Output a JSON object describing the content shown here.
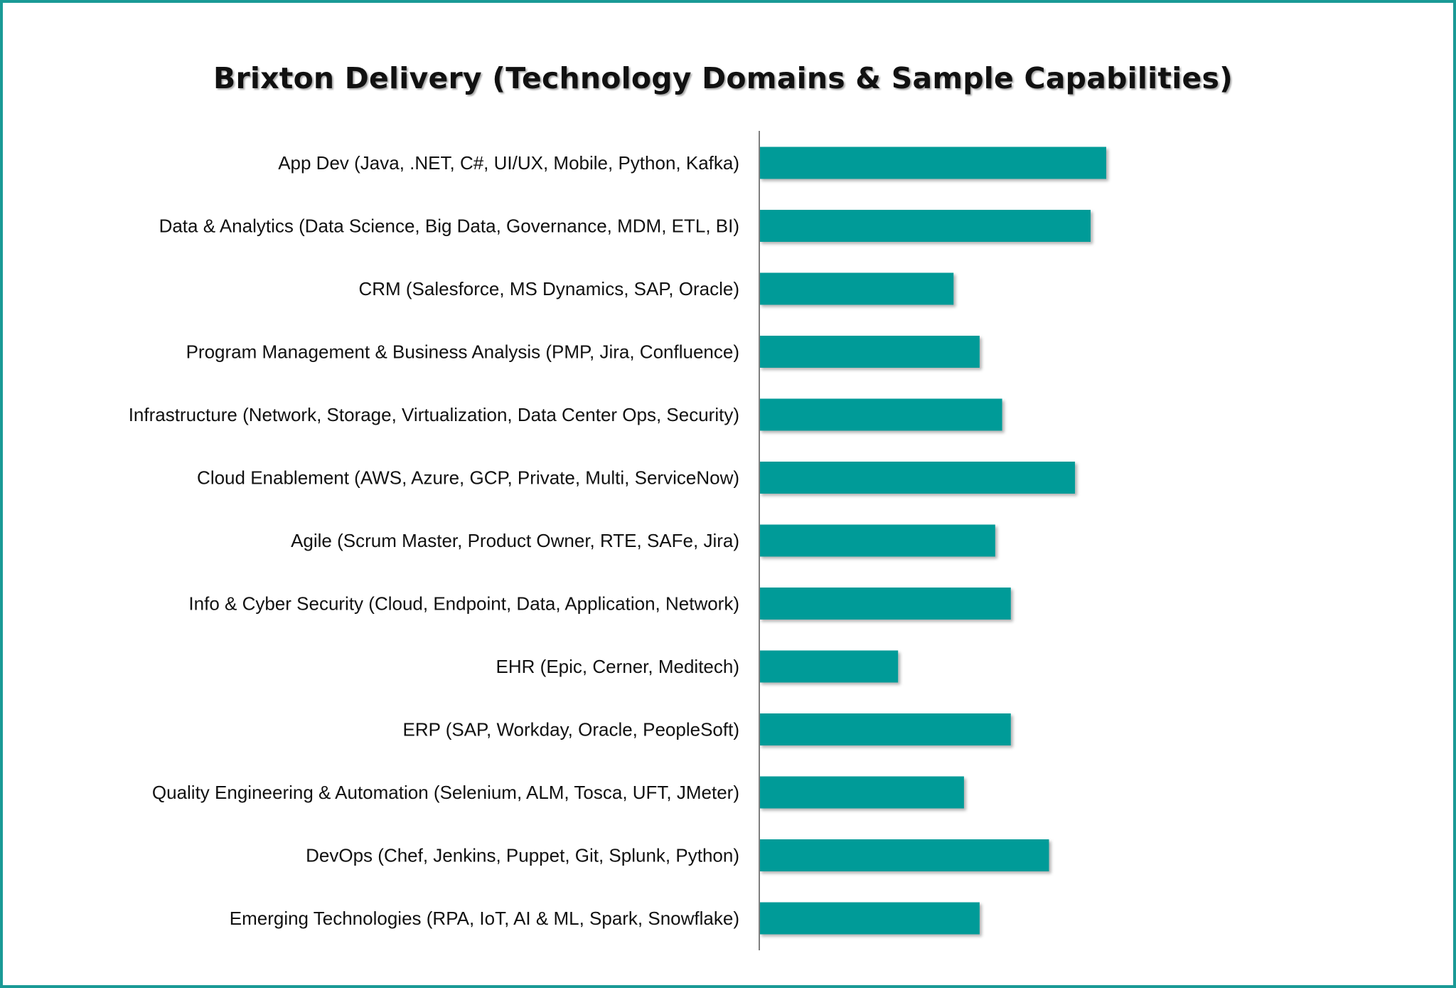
{
  "chart_data": {
    "type": "bar",
    "orientation": "horizontal",
    "title": "Brixton Delivery (Technology Domains & Sample Capabilities)",
    "xlabel": "",
    "ylabel": "",
    "categories": [
      "App Dev (Java, .NET, C#, UI/UX, Mobile, Python, Kafka)",
      "Data & Analytics (Data Science, Big Data, Governance, MDM, ETL, BI)",
      "CRM (Salesforce, MS Dynamics, SAP, Oracle)",
      "Program Management & Business Analysis (PMP, Jira, Confluence)",
      "Infrastructure (Network, Storage, Virtualization, Data Center Ops, Security)",
      "Cloud Enablement (AWS, Azure, GCP, Private, Multi, ServiceNow)",
      "Agile (Scrum Master, Product Owner, RTE, SAFe, Jira)",
      "Info & Cyber Security (Cloud, Endpoint, Data, Application, Network)",
      "EHR (Epic, Cerner, Meditech)",
      "ERP (SAP, Workday, Oracle, PeopleSoft)",
      "Quality Engineering & Automation (Selenium, ALM, Tosca, UFT, JMeter)",
      "DevOps (Chef, Jenkins, Puppet, Git, Splunk, Python)",
      "Emerging Technologies (RPA, IoT, AI & ML, Spark, Snowflake)"
    ],
    "values": [
      100,
      95.5,
      56,
      63.5,
      70,
      91,
      68,
      72.5,
      40,
      72.5,
      59,
      83.5,
      63.5
    ],
    "xlim": [
      0,
      100
    ],
    "grid": false,
    "value_axis_visible": false,
    "bar_color": "#009b98",
    "axis_color": "#7f7f7f",
    "frame_color": "#1a9a96"
  }
}
